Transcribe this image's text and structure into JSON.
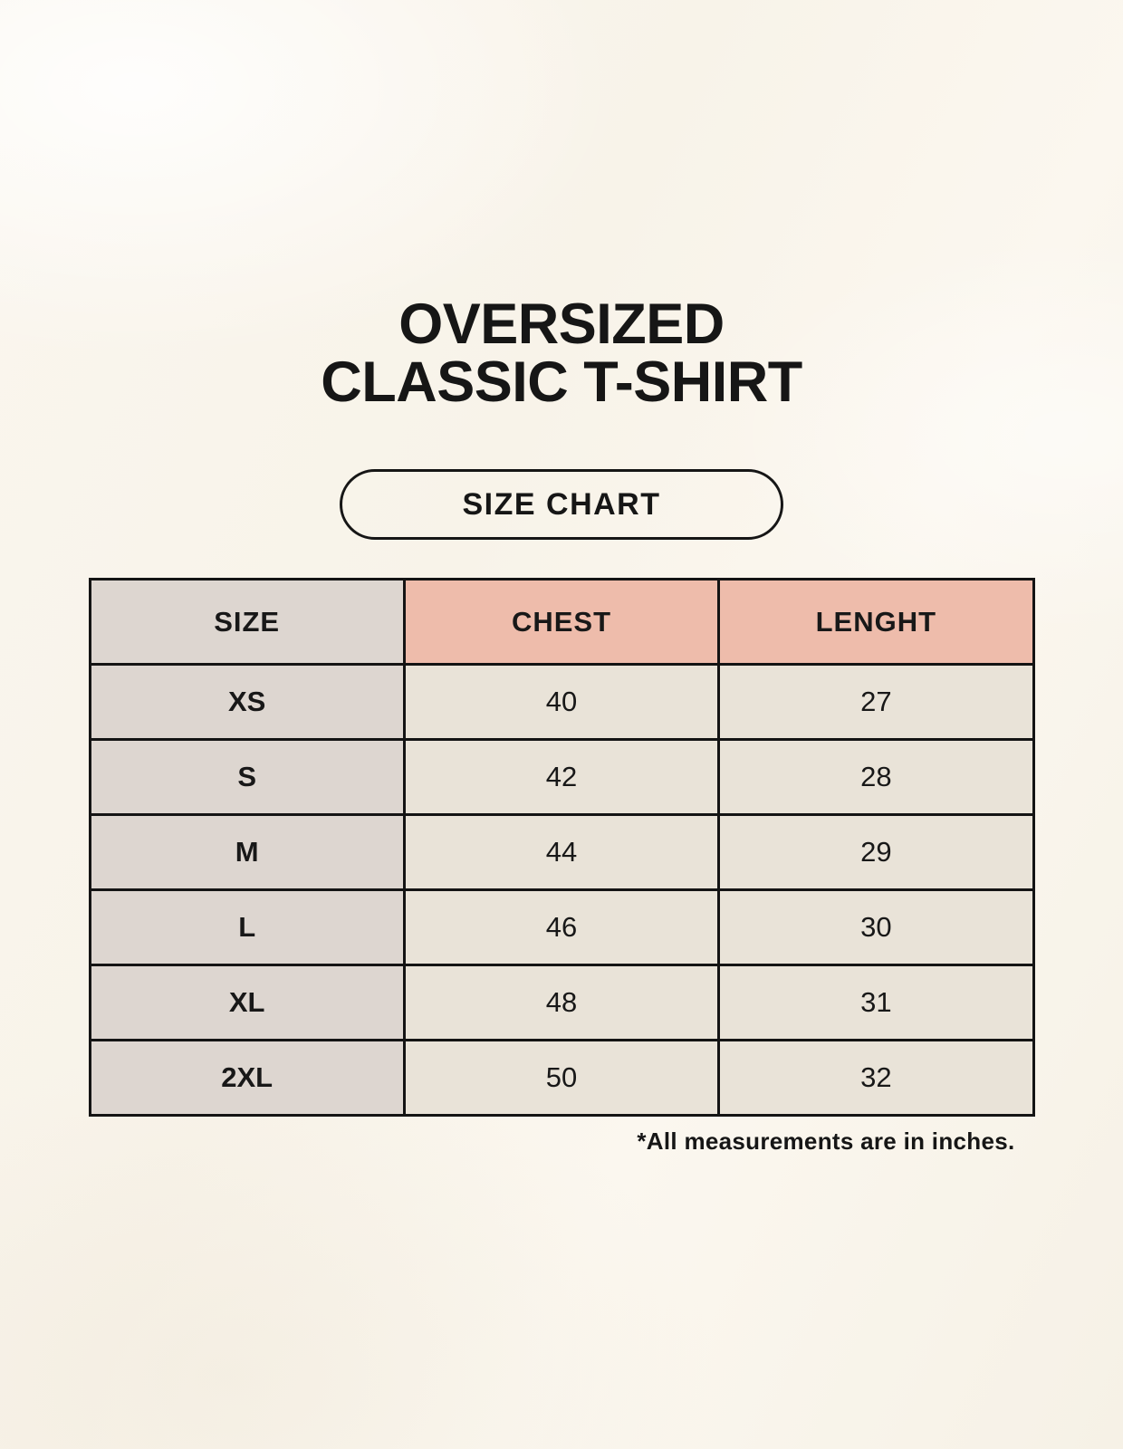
{
  "title": {
    "line1": "OVERSIZED",
    "line2": "CLASSIC T-SHIRT"
  },
  "size_chart_button": {
    "label": "SIZE CHART"
  },
  "table": {
    "headers": [
      "SIZE",
      "CHEST",
      "LENGHT"
    ],
    "rows": [
      {
        "size": "XS",
        "chest": "40",
        "length": "27"
      },
      {
        "size": "S",
        "chest": "42",
        "length": "28"
      },
      {
        "size": "M",
        "chest": "44",
        "length": "29"
      },
      {
        "size": "L",
        "chest": "46",
        "length": "30"
      },
      {
        "size": "XL",
        "chest": "48",
        "length": "31"
      },
      {
        "size": "2XL",
        "chest": "50",
        "length": "32"
      }
    ]
  },
  "footnote": "*All measurements are in inches.",
  "colors": {
    "background": "#f9f5ec",
    "size_column_bg": "#ddd6d0",
    "measure_header_bg": "#eebcab",
    "data_cell_bg": "#e9e3d8",
    "border": "#141414",
    "text": "#181818"
  },
  "chart_data": {
    "type": "table",
    "title": "OVERSIZED CLASSIC T-SHIRT",
    "subtitle": "SIZE CHART",
    "columns": [
      "SIZE",
      "CHEST",
      "LENGHT"
    ],
    "rows": [
      [
        "XS",
        40,
        27
      ],
      [
        "S",
        42,
        28
      ],
      [
        "M",
        44,
        29
      ],
      [
        "L",
        46,
        30
      ],
      [
        "XL",
        48,
        31
      ],
      [
        "2XL",
        50,
        32
      ]
    ],
    "units_note": "*All measurements are in inches."
  }
}
